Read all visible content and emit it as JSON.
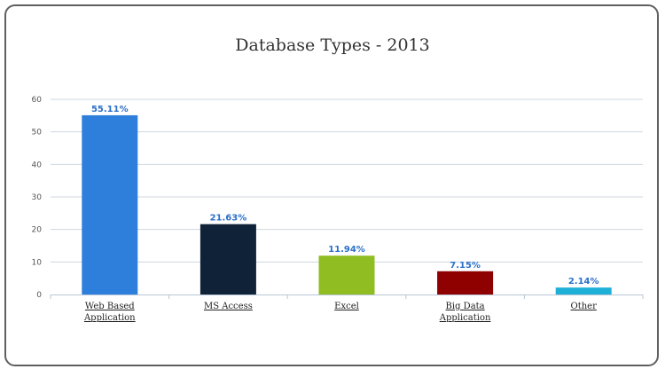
{
  "chart_data": {
    "type": "bar",
    "title": "Database Types - 2013",
    "xlabel": "",
    "ylabel": "",
    "ylim": [
      0,
      60
    ],
    "yticks": [
      0,
      10,
      20,
      30,
      40,
      50,
      60
    ],
    "grid": true,
    "categories": [
      [
        "Web Based",
        "Application"
      ],
      [
        "MS Access"
      ],
      [
        "Excel"
      ],
      [
        "Big Data",
        "Application"
      ],
      [
        "Other"
      ]
    ],
    "values": [
      55.11,
      21.63,
      11.94,
      7.15,
      2.14
    ],
    "data_labels": [
      "55.11%",
      "21.63%",
      "11.94%",
      "7.15%",
      "2.14%"
    ],
    "colors": [
      "#2e7fdc",
      "#0f2238",
      "#8fbd22",
      "#8f0000",
      "#1fb0d8"
    ]
  }
}
